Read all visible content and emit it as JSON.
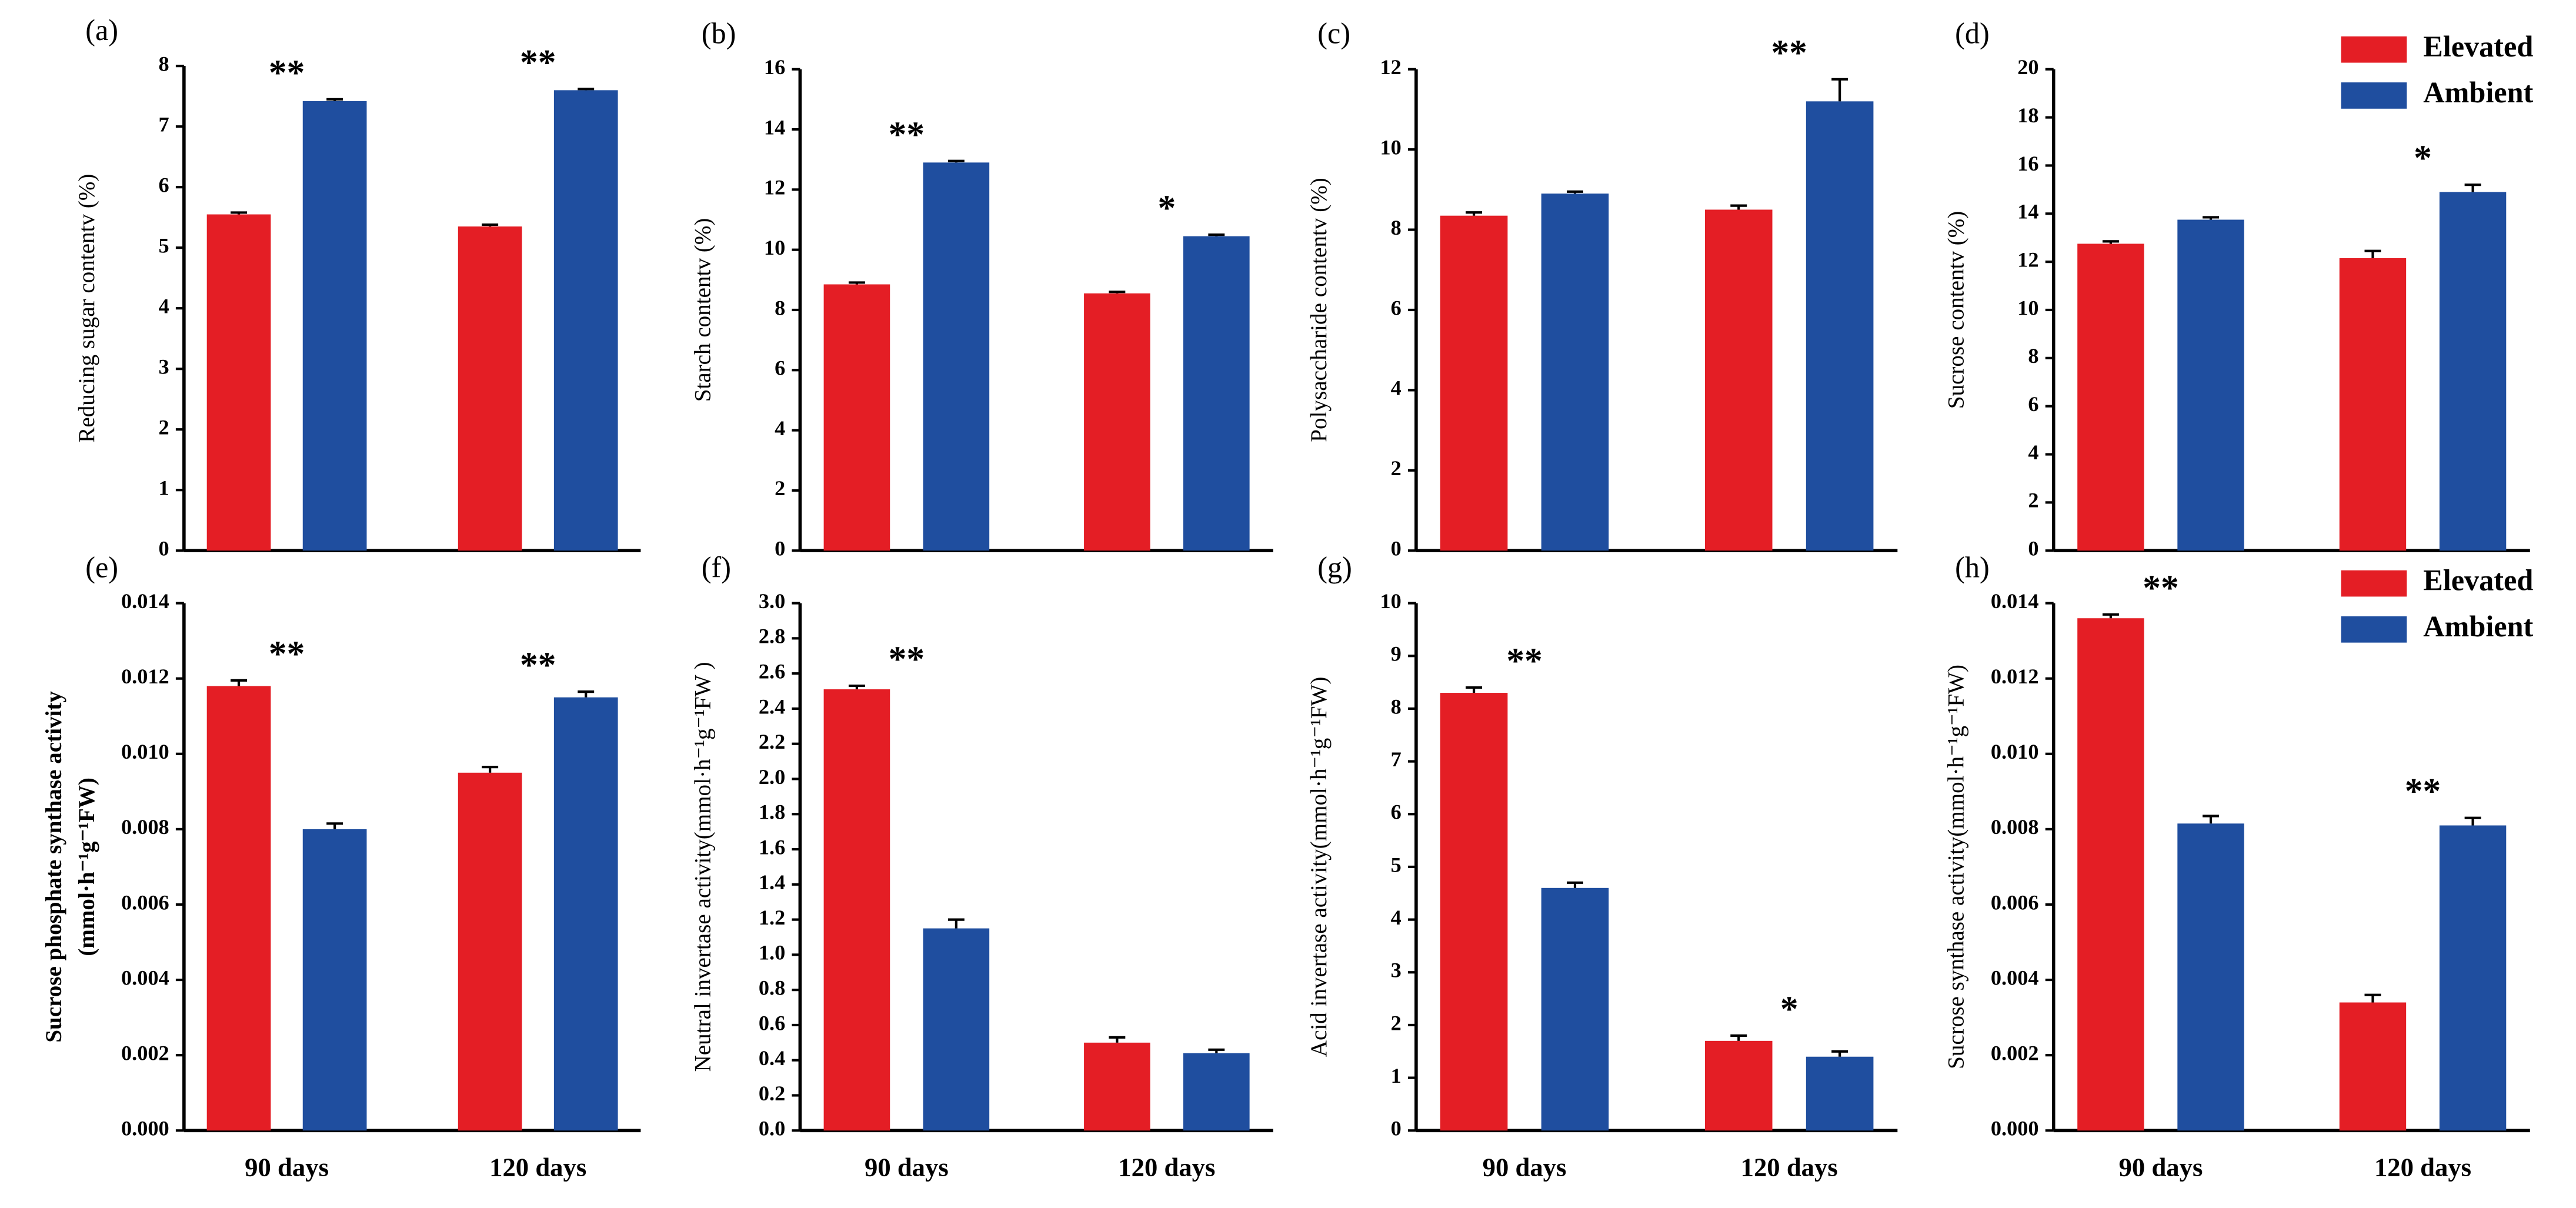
{
  "chart_data": [
    {
      "type": "bar",
      "panel": "(a)",
      "ylabel": [
        "Reducing sugar contentv (%)"
      ],
      "categories": [
        null,
        null
      ],
      "series": [
        {
          "name": "Elevated",
          "color": "#e41e25",
          "values": [
            5.55,
            5.35
          ],
          "errors": [
            0.03,
            0.03
          ]
        },
        {
          "name": "Ambient",
          "color": "#1f4e9f",
          "values": [
            7.42,
            7.6
          ],
          "errors": [
            0.03,
            0.02
          ]
        }
      ],
      "significance": [
        "**",
        "**"
      ],
      "ylim": [
        0,
        8
      ],
      "yticks": [
        0,
        1,
        2,
        3,
        4,
        5,
        6,
        7,
        8
      ]
    },
    {
      "type": "bar",
      "panel": "(b)",
      "ylabel": [
        "Starch contentv (%)"
      ],
      "categories": [
        null,
        null
      ],
      "series": [
        {
          "name": "Elevated",
          "color": "#e41e25",
          "values": [
            8.85,
            8.55
          ],
          "errors": [
            0.06,
            0.05
          ]
        },
        {
          "name": "Ambient",
          "color": "#1f4e9f",
          "values": [
            12.9,
            10.45
          ],
          "errors": [
            0.05,
            0.05
          ]
        }
      ],
      "significance": [
        "**",
        "*"
      ],
      "ylim": [
        0,
        16
      ],
      "yticks": [
        0,
        2,
        4,
        6,
        8,
        10,
        12,
        14,
        16
      ]
    },
    {
      "type": "bar",
      "panel": "(c)",
      "ylabel": [
        "Polysaccharide contentv (%)"
      ],
      "categories": [
        null,
        null
      ],
      "series": [
        {
          "name": "Elevated",
          "color": "#e41e25",
          "values": [
            8.35,
            8.5
          ],
          "errors": [
            0.08,
            0.1
          ]
        },
        {
          "name": "Ambient",
          "color": "#1f4e9f",
          "values": [
            8.9,
            11.2
          ],
          "errors": [
            0.05,
            0.55
          ]
        }
      ],
      "significance": [
        null,
        "**"
      ],
      "ylim": [
        0,
        12
      ],
      "yticks": [
        0,
        2,
        4,
        6,
        8,
        10,
        12
      ]
    },
    {
      "type": "bar",
      "panel": "(d)",
      "ylabel": [
        "Sucrose contentv (%)"
      ],
      "categories": [
        null,
        null
      ],
      "series": [
        {
          "name": "Elevated",
          "color": "#e41e25",
          "values": [
            12.75,
            12.15
          ],
          "errors": [
            0.1,
            0.3
          ]
        },
        {
          "name": "Ambient",
          "color": "#1f4e9f",
          "values": [
            13.75,
            14.9
          ],
          "errors": [
            0.1,
            0.3
          ]
        }
      ],
      "significance": [
        null,
        "*"
      ],
      "ylim": [
        0,
        20
      ],
      "yticks": [
        0,
        2,
        4,
        6,
        8,
        10,
        12,
        14,
        16,
        18,
        20
      ],
      "legend": "upper right"
    },
    {
      "type": "bar",
      "panel": "(e)",
      "ylabel": [
        "Sucrose phosphate synthase activity",
        "(mmol·h⁻¹g⁻¹FW)"
      ],
      "categories": [
        "90 days",
        "120 days"
      ],
      "series": [
        {
          "name": "Elevated",
          "color": "#e41e25",
          "values": [
            0.0118,
            0.0095
          ],
          "errors": [
            0.00015,
            0.00015
          ]
        },
        {
          "name": "Ambient",
          "color": "#1f4e9f",
          "values": [
            0.008,
            0.0115
          ],
          "errors": [
            0.00015,
            0.00015
          ]
        }
      ],
      "significance": [
        "**",
        "**"
      ],
      "ylim": [
        0,
        0.014
      ],
      "yticks": [
        {
          "value": 0,
          "label": "0.000"
        },
        {
          "value": 0.002,
          "label": "0.002"
        },
        {
          "value": 0.004,
          "label": "0.004"
        },
        {
          "value": 0.006,
          "label": "0.006"
        },
        {
          "value": 0.008,
          "label": "0.008"
        },
        {
          "value": 0.01,
          "label": "0.010"
        },
        {
          "value": 0.012,
          "label": "0.012"
        },
        {
          "value": 0.014,
          "label": "0.014"
        }
      ]
    },
    {
      "type": "bar",
      "panel": "(f)",
      "ylabel": [
        "Neutral invertase activity(mmol·h⁻¹g⁻¹FW )"
      ],
      "categories": [
        "90 days",
        "120 days"
      ],
      "series": [
        {
          "name": "Elevated",
          "color": "#e41e25",
          "values": [
            2.51,
            0.5
          ],
          "errors": [
            0.02,
            0.03
          ]
        },
        {
          "name": "Ambient",
          "color": "#1f4e9f",
          "values": [
            1.15,
            0.44
          ],
          "errors": [
            0.05,
            0.02
          ]
        }
      ],
      "significance": [
        "**",
        null
      ],
      "ylim": [
        0,
        3
      ],
      "yticks": [
        {
          "value": 0,
          "label": "0.0"
        },
        {
          "value": 0.2,
          "label": "0.2"
        },
        {
          "value": 0.4,
          "label": "0.4"
        },
        {
          "value": 0.6,
          "label": "0.6"
        },
        {
          "value": 0.8,
          "label": "0.8"
        },
        {
          "value": 1,
          "label": "1.0"
        },
        {
          "value": 1.2,
          "label": "1.2"
        },
        {
          "value": 1.4,
          "label": "1.4"
        },
        {
          "value": 1.6,
          "label": "1.6"
        },
        {
          "value": 1.8,
          "label": "1.8"
        },
        {
          "value": 2,
          "label": "2.0"
        },
        {
          "value": 2.2,
          "label": "2.2"
        },
        {
          "value": 2.4,
          "label": "2.4"
        },
        {
          "value": 2.6,
          "label": "2.6"
        },
        {
          "value": 2.8,
          "label": "2.8"
        },
        {
          "value": 3,
          "label": "3.0"
        }
      ]
    },
    {
      "type": "bar",
      "panel": "(g)",
      "ylabel": [
        "Acid  invertase activity(mmol·h⁻¹g⁻¹FW)"
      ],
      "categories": [
        "90 days",
        "120 days"
      ],
      "series": [
        {
          "name": "Elevated",
          "color": "#e41e25",
          "values": [
            8.3,
            1.7
          ],
          "errors": [
            0.1,
            0.1
          ]
        },
        {
          "name": "Ambient",
          "color": "#1f4e9f",
          "values": [
            4.6,
            1.4
          ],
          "errors": [
            0.1,
            0.1
          ]
        }
      ],
      "significance": [
        "**",
        "*"
      ],
      "ylim": [
        0,
        10
      ],
      "yticks": [
        0,
        1,
        2,
        3,
        4,
        5,
        6,
        7,
        8,
        9,
        10
      ]
    },
    {
      "type": "bar",
      "panel": "(h)",
      "ylabel": [
        "Sucrose synthase activity(mmol·h⁻¹g⁻¹FW)"
      ],
      "categories": [
        "90 days",
        "120 days"
      ],
      "series": [
        {
          "name": "Elevated",
          "color": "#e41e25",
          "values": [
            0.0136,
            0.0034
          ],
          "errors": [
            0.0001,
            0.0002
          ]
        },
        {
          "name": "Ambient",
          "color": "#1f4e9f",
          "values": [
            0.00815,
            0.0081
          ],
          "errors": [
            0.0002,
            0.0002
          ]
        }
      ],
      "significance": [
        "**",
        "**"
      ],
      "ylim": [
        0,
        0.014
      ],
      "yticks": [
        {
          "value": 0,
          "label": "0.000"
        },
        {
          "value": 0.002,
          "label": "0.002"
        },
        {
          "value": 0.004,
          "label": "0.004"
        },
        {
          "value": 0.006,
          "label": "0.006"
        },
        {
          "value": 0.008,
          "label": "0.008"
        },
        {
          "value": 0.01,
          "label": "0.010"
        },
        {
          "value": 0.012,
          "label": "0.012"
        },
        {
          "value": 0.014,
          "label": "0.014"
        }
      ],
      "legend": "upper right"
    }
  ]
}
